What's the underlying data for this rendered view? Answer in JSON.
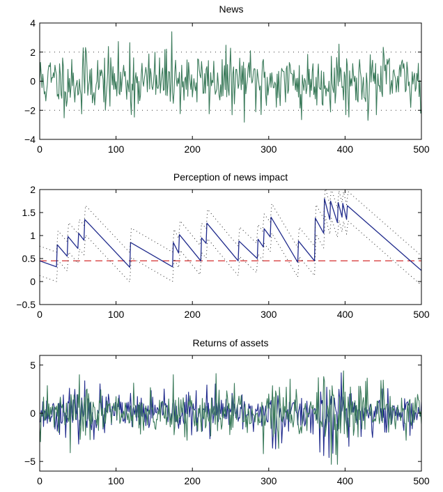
{
  "chart_data": [
    {
      "type": "line",
      "title": "News",
      "xlim": [
        0,
        500
      ],
      "ylim": [
        -4,
        4
      ],
      "xticks": [
        "0",
        "100",
        "200",
        "300",
        "400",
        "500"
      ],
      "yticks": [
        "4",
        "2",
        "0",
        "−2",
        "−4"
      ],
      "xtick_values": [
        0,
        100,
        200,
        300,
        400,
        500
      ],
      "ytick_values": [
        4,
        2,
        0,
        -2,
        -4
      ],
      "reference_lines": [
        {
          "y": 2,
          "style": "dotted",
          "color": "#333333"
        },
        {
          "y": -2,
          "style": "dotted",
          "color": "#333333"
        }
      ],
      "series": [
        {
          "color": "#3a7a5a",
          "kind": "noise",
          "seed": 11,
          "n": 500,
          "sigma": 1.0,
          "extremes": [
            [
              173,
              3.4
            ],
            [
              343,
              -2.65
            ],
            [
              57,
              2.3
            ],
            [
              118,
              2.65
            ],
            [
              120,
              -2.3
            ],
            [
              290,
              -2.3
            ],
            [
              392,
              2.55
            ],
            [
              55,
              -2.25
            ]
          ]
        }
      ]
    },
    {
      "type": "line",
      "title": "Perception of news impact",
      "xlim": [
        0,
        500
      ],
      "ylim": [
        -0.5,
        2
      ],
      "xticks": [
        "0",
        "100",
        "200",
        "300",
        "400",
        "500"
      ],
      "yticks": [
        "2",
        "1.5",
        "1",
        "0.5",
        "0",
        "−0.5"
      ],
      "xtick_values": [
        0,
        100,
        200,
        300,
        400,
        500
      ],
      "ytick_values": [
        2,
        1.5,
        1,
        0.5,
        0,
        -0.5
      ],
      "reference_lines": [
        {
          "y": 0.45,
          "style": "dashed",
          "color": "#d94040"
        }
      ],
      "series": [
        {
          "color": "#1f2a8c",
          "kind": "decay",
          "x": [
            0,
            22,
            23,
            36,
            37,
            50,
            51,
            58,
            59,
            118,
            119,
            174,
            175,
            182,
            183,
            211,
            212,
            218,
            219,
            260,
            261,
            285,
            286,
            293,
            294,
            302,
            303,
            338,
            339,
            360,
            361,
            372,
            373,
            380,
            381,
            390,
            391,
            396,
            397,
            402,
            403,
            500
          ],
          "y": [
            0.45,
            0.32,
            0.8,
            0.55,
            0.98,
            0.72,
            1.05,
            0.9,
            1.35,
            0.31,
            0.85,
            0.32,
            0.85,
            0.62,
            1.02,
            0.45,
            0.95,
            0.83,
            1.27,
            0.45,
            0.88,
            0.5,
            0.92,
            0.75,
            1.15,
            0.97,
            1.4,
            0.42,
            0.88,
            0.45,
            1.38,
            1.05,
            1.8,
            1.35,
            1.75,
            1.28,
            1.72,
            1.4,
            1.7,
            1.35,
            1.65,
            0.24
          ]
        },
        {
          "color": "#222222",
          "kind": "band_upper",
          "offset": 0.32,
          "style": "dotted"
        },
        {
          "color": "#222222",
          "kind": "band_lower",
          "offset": 0.32,
          "style": "dotted"
        }
      ]
    },
    {
      "type": "line",
      "title": "Returns of assets",
      "xlim": [
        0,
        500
      ],
      "ylim": [
        -6,
        6
      ],
      "xticks": [
        "0",
        "100",
        "200",
        "300",
        "400",
        "500"
      ],
      "yticks": [
        "5",
        "0",
        "−5"
      ],
      "xtick_values": [
        0,
        100,
        200,
        300,
        400,
        500
      ],
      "ytick_values": [
        5,
        0,
        -5
      ],
      "series": [
        {
          "color": "#1f2a8c",
          "kind": "noise",
          "seed": 23,
          "n": 500,
          "sigma": 1.15,
          "extremes": [
            [
              372,
              -4.4
            ],
            [
              379,
              -4.6
            ],
            [
              395,
              4.2
            ]
          ]
        },
        {
          "color": "#3a7a5a",
          "kind": "noise",
          "seed": 47,
          "n": 500,
          "sigma": 1.3,
          "extremes": [
            [
              40,
              -4.1
            ],
            [
              52,
              4.0
            ],
            [
              175,
              4.0
            ],
            [
              293,
              -4.2
            ],
            [
              388,
              -4.3
            ],
            [
              398,
              4.4
            ],
            [
              372,
              3.8
            ]
          ]
        }
      ]
    }
  ]
}
